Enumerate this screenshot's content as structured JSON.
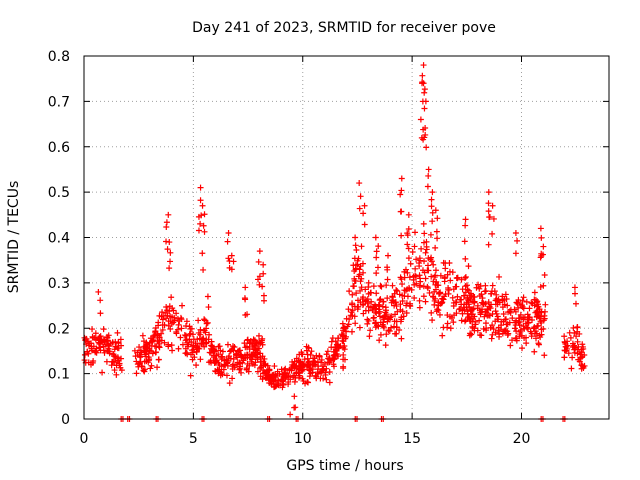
{
  "chart_data": {
    "type": "scatter",
    "title": "Day 241 of 2023, SRMTID for receiver pove",
    "xlabel": "GPS time / hours",
    "ylabel": "SRMTID / TECUs",
    "xlim": [
      0,
      24
    ],
    "ylim": [
      0,
      0.8
    ],
    "xticks": [
      0,
      5,
      10,
      15,
      20
    ],
    "yticks": [
      0,
      0.1,
      0.2,
      0.3,
      0.4,
      0.5,
      0.6,
      0.7,
      0.8
    ],
    "xtick_labels": [
      "0",
      "5",
      "10",
      "15",
      "20"
    ],
    "ytick_labels": [
      "0",
      "0.1",
      "0.2",
      "0.3",
      "0.4",
      "0.5",
      "0.6",
      "0.7",
      "0.8"
    ],
    "grid": true,
    "marker": "plus",
    "series": [
      {
        "name": "SRMTID",
        "color": "#ff0000",
        "profile": {
          "x": [
            0,
            1,
            2,
            3,
            3.5,
            4,
            4.5,
            5,
            5.5,
            6,
            7,
            8,
            8.5,
            9,
            10,
            11,
            11.5,
            12,
            12.5,
            13,
            14,
            15,
            15.5,
            16,
            17,
            18,
            19,
            20,
            21,
            22,
            22.9
          ],
          "y": [
            0.15,
            0.16,
            0.13,
            0.15,
            0.19,
            0.22,
            0.2,
            0.15,
            0.19,
            0.12,
            0.14,
            0.15,
            0.09,
            0.09,
            0.12,
            0.11,
            0.15,
            0.2,
            0.32,
            0.25,
            0.22,
            0.3,
            0.35,
            0.28,
            0.27,
            0.24,
            0.23,
            0.21,
            0.23,
            0.17,
            0.14
          ]
        },
        "spikes": [
          {
            "x": 0.7,
            "y": 0.28
          },
          {
            "x": 1.4,
            "y": 0.17
          },
          {
            "x": 3.8,
            "y": 0.45
          },
          {
            "x": 3.9,
            "y": 0.39
          },
          {
            "x": 5.3,
            "y": 0.51
          },
          {
            "x": 5.45,
            "y": 0.47
          },
          {
            "x": 5.7,
            "y": 0.27
          },
          {
            "x": 6.6,
            "y": 0.41
          },
          {
            "x": 6.8,
            "y": 0.36
          },
          {
            "x": 7.4,
            "y": 0.29
          },
          {
            "x": 8.0,
            "y": 0.37
          },
          {
            "x": 8.2,
            "y": 0.34
          },
          {
            "x": 9.4,
            "y": 0.01
          },
          {
            "x": 9.6,
            "y": 0.05
          },
          {
            "x": 11.9,
            "y": 0.2
          },
          {
            "x": 12.4,
            "y": 0.4
          },
          {
            "x": 12.6,
            "y": 0.52
          },
          {
            "x": 12.8,
            "y": 0.47
          },
          {
            "x": 13.4,
            "y": 0.4
          },
          {
            "x": 13.9,
            "y": 0.36
          },
          {
            "x": 14.5,
            "y": 0.53
          },
          {
            "x": 14.8,
            "y": 0.45
          },
          {
            "x": 15.5,
            "y": 0.78
          },
          {
            "x": 15.55,
            "y": 0.74
          },
          {
            "x": 15.6,
            "y": 0.7
          },
          {
            "x": 15.45,
            "y": 0.66
          },
          {
            "x": 15.7,
            "y": 0.55
          },
          {
            "x": 15.9,
            "y": 0.5
          },
          {
            "x": 16.1,
            "y": 0.46
          },
          {
            "x": 17.4,
            "y": 0.44
          },
          {
            "x": 18.5,
            "y": 0.5
          },
          {
            "x": 18.7,
            "y": 0.47
          },
          {
            "x": 19.8,
            "y": 0.41
          },
          {
            "x": 20.9,
            "y": 0.42
          },
          {
            "x": 21.0,
            "y": 0.38
          },
          {
            "x": 22.5,
            "y": 0.29
          }
        ],
        "zeros": [
          1.7,
          2.0,
          3.3,
          5.4,
          8.4,
          9.7,
          12.4,
          13.6,
          20.9,
          21.9
        ],
        "gaps": [
          [
            1.75,
            2.3
          ],
          [
            21.1,
            21.95
          ]
        ]
      }
    ]
  }
}
